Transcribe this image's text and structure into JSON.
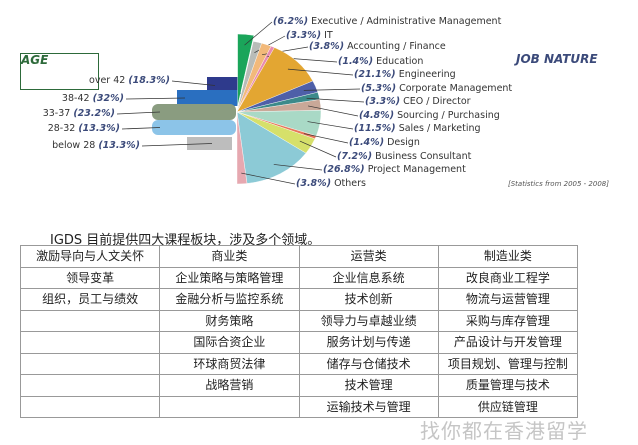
{
  "chart_data": [
    {
      "type": "pie",
      "title": "JOB NATURE",
      "note": "[Statistics from 2005 - 2008]",
      "slices": [
        {
          "label": "Executive / Administrative Management",
          "pct_text": "(6.2%)",
          "value": 6.2,
          "color": "#1aa55a"
        },
        {
          "label": "IT",
          "pct_text": "(3.3%)",
          "value": 3.3,
          "color": "#b8bcb8"
        },
        {
          "label": "Accounting / Finance",
          "pct_text": "(3.8%)",
          "value": 3.8,
          "color": "#f2b97a"
        },
        {
          "label": "Education",
          "pct_text": "(1.4%)",
          "value": 1.4,
          "color": "#e98bb0"
        },
        {
          "label": "Engineering",
          "pct_text": "(21.1%)",
          "value": 21.1,
          "color": "#e3a632"
        },
        {
          "label": "Corporate Management",
          "pct_text": "(5.3%)",
          "value": 5.3,
          "color": "#4e5fa8"
        },
        {
          "label": "CEO / Director",
          "pct_text": "(3.3%)",
          "value": 3.3,
          "color": "#3c8a8a"
        },
        {
          "label": "Sourcing / Purchasing",
          "pct_text": "(4.8%)",
          "value": 4.8,
          "color": "#c9a898"
        },
        {
          "label": "Sales / Marketing",
          "pct_text": "(11.5%)",
          "value": 11.5,
          "color": "#a9d9c6"
        },
        {
          "label": "Design",
          "pct_text": "(1.4%)",
          "value": 1.4,
          "color": "#e8765a"
        },
        {
          "label": "Business Consultant",
          "pct_text": "(7.2%)",
          "value": 7.2,
          "color": "#d6e06a"
        },
        {
          "label": "Project Management",
          "pct_text": "(26.8%)",
          "value": 26.8,
          "color": "#8ccad6"
        },
        {
          "label": "Others",
          "pct_text": "(3.8%)",
          "value": 3.8,
          "color": "#e6a8b0"
        }
      ]
    },
    {
      "type": "bar",
      "title": "AGE",
      "bars": [
        {
          "label": "over 42",
          "pct_text": "(18.3%)",
          "value": 18.3,
          "color": "#2e3a8c"
        },
        {
          "label": "38-42",
          "pct_text": "(32%)",
          "value": 32,
          "color": "#2a6fc0"
        },
        {
          "label": "33-37",
          "pct_text": "(23.2%)",
          "value": 23.2,
          "color": "#8a9c80"
        },
        {
          "label": "28-32",
          "pct_text": "(13.3%)",
          "value": 13.3,
          "color": "#8cc4e8"
        },
        {
          "label": "below 28",
          "pct_text": "(13.3%)",
          "value": 13.3,
          "color": "#bdbdbd"
        }
      ]
    }
  ],
  "intro": "IGDS 目前提供四大课程板块，涉及多个领域。",
  "table": {
    "rows": [
      [
        "激励导向与人文关怀",
        "商业类",
        "运营类",
        "制造业类"
      ],
      [
        "领导变革",
        "企业策略与策略管理",
        "企业信息系统",
        "改良商业工程学"
      ],
      [
        "组织，员工与绩效",
        "金融分析与监控系统",
        "技术创新",
        "物流与运营管理"
      ],
      [
        "",
        "财务策略",
        "领导力与卓越业绩",
        "采购与库存管理"
      ],
      [
        "",
        "国际合资企业",
        "服务计划与传递",
        "产品设计与开发管理"
      ],
      [
        "",
        "环球商贸法律",
        "储存与仓储技术",
        "项目规划、管理与控制"
      ],
      [
        "",
        "战略营销",
        "技术管理",
        "质量管理与技术"
      ],
      [
        "",
        "",
        "运输技术与管理",
        "供应链管理"
      ]
    ]
  },
  "watermark": "找你都在香港留学"
}
